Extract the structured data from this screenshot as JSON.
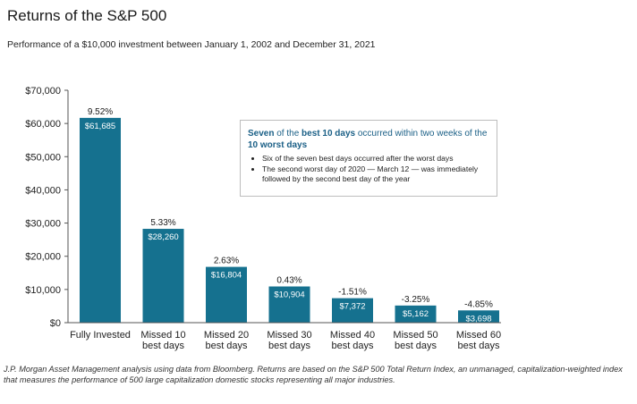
{
  "title": "Returns of the S&P 500",
  "subtitle": "Performance of a $10,000 investment between January 1, 2002 and December 31, 2021",
  "callout": {
    "head_parts": [
      {
        "text": "Seven",
        "bold": true
      },
      {
        "text": " of the ",
        "bold": false
      },
      {
        "text": "best 10 days",
        "bold": true
      },
      {
        "text": " occurred within two weeks of the ",
        "bold": false
      },
      {
        "text": "10 worst days",
        "bold": true
      }
    ],
    "bullets": [
      "Six of the seven best days occurred after the worst days",
      "The second worst day of 2020 — March 12 — was immediately followed by the second best day of the year"
    ]
  },
  "footnote": "J.P. Morgan Asset Management analysis using data from Bloomberg. Returns are based on the S&P 500 Total Return Index, an unmanaged, capitalization-weighted index that measures the performance of 500 large capitalization domestic stocks representing all major industries.",
  "colors": {
    "bar": "#15718f",
    "axis": "#333333",
    "callout_text": "#1a5f86"
  },
  "chart_data": {
    "type": "bar",
    "title": "Returns of the S&P 500",
    "ylim": [
      0,
      70000
    ],
    "yticks": [
      0,
      10000,
      20000,
      30000,
      40000,
      50000,
      60000,
      70000
    ],
    "ytick_labels": [
      "$0",
      "$10,000",
      "$20,000",
      "$30,000",
      "$40,000",
      "$50,000",
      "$60,000",
      "$70,000"
    ],
    "categories": [
      [
        "Fully Invested"
      ],
      [
        "Missed 10",
        "best days"
      ],
      [
        "Missed 20",
        "best days"
      ],
      [
        "Missed 30",
        "best days"
      ],
      [
        "Missed 40",
        "best days"
      ],
      [
        "Missed 50",
        "best days"
      ],
      [
        "Missed 60",
        "best days"
      ]
    ],
    "values": [
      61685,
      28260,
      16804,
      10904,
      7372,
      5162,
      3698
    ],
    "value_labels": [
      "$61,685",
      "$28,260",
      "$16,804",
      "$10,904",
      "$7,372",
      "$5,162",
      "$3,698"
    ],
    "return_labels": [
      "9.52%",
      "5.33%",
      "2.63%",
      "0.43%",
      "-1.51%",
      "-3.25%",
      "-4.85%"
    ],
    "grid": false,
    "legend": "none"
  }
}
